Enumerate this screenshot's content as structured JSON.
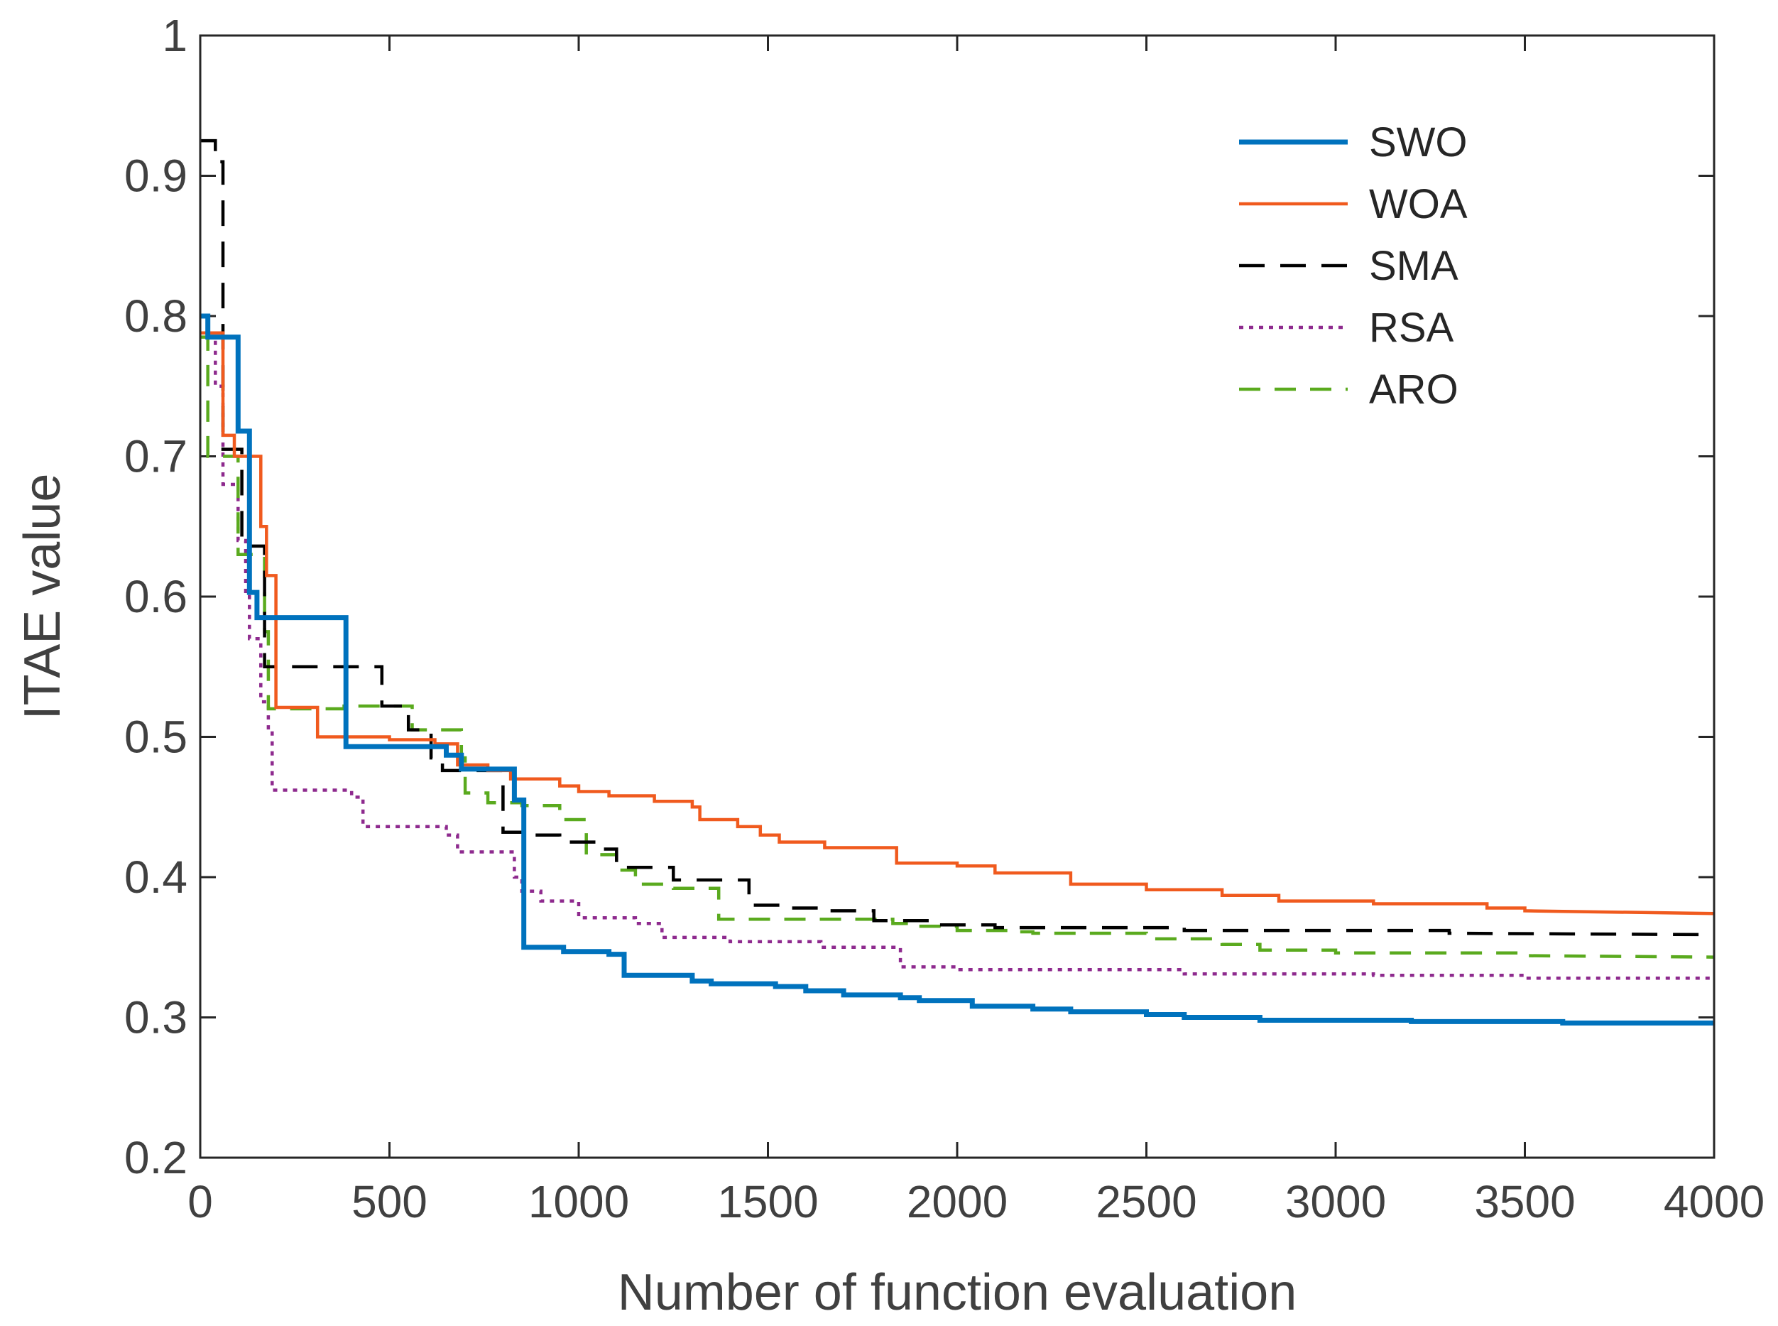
{
  "chart_data": {
    "type": "line",
    "title": "",
    "xlabel": "Number of function evaluation",
    "ylabel": "ITAE value",
    "xlim": [
      0,
      4000
    ],
    "ylim": [
      0.2,
      1
    ],
    "xticks": [
      0,
      500,
      1000,
      1500,
      2000,
      2500,
      3000,
      3500,
      4000
    ],
    "xtick_labels": [
      "0",
      "500",
      "1000",
      "1500",
      "2000",
      "2500",
      "3000",
      "3500",
      "4000"
    ],
    "yticks": [
      0.2,
      0.3,
      0.4,
      0.5,
      0.6,
      0.7,
      0.8,
      0.9,
      1
    ],
    "ytick_labels": [
      "0.2",
      "0.3",
      "0.4",
      "0.5",
      "0.6",
      "0.7",
      "0.8",
      "0.9",
      "1"
    ],
    "grid": false,
    "legend_position": "top-right",
    "series": [
      {
        "name": "SWO",
        "color": "#0072BD",
        "line_style": "solid",
        "points": [
          [
            0,
            0.8
          ],
          [
            20,
            0.8
          ],
          [
            20,
            0.785
          ],
          [
            100,
            0.785
          ],
          [
            100,
            0.718
          ],
          [
            130,
            0.718
          ],
          [
            130,
            0.603
          ],
          [
            150,
            0.603
          ],
          [
            150,
            0.585
          ],
          [
            385,
            0.585
          ],
          [
            385,
            0.493
          ],
          [
            650,
            0.493
          ],
          [
            650,
            0.487
          ],
          [
            690,
            0.487
          ],
          [
            690,
            0.477
          ],
          [
            830,
            0.477
          ],
          [
            830,
            0.455
          ],
          [
            855,
            0.455
          ],
          [
            855,
            0.35
          ],
          [
            960,
            0.35
          ],
          [
            960,
            0.347
          ],
          [
            1080,
            0.347
          ],
          [
            1080,
            0.345
          ],
          [
            1120,
            0.345
          ],
          [
            1120,
            0.33
          ],
          [
            1300,
            0.33
          ],
          [
            1300,
            0.326
          ],
          [
            1350,
            0.326
          ],
          [
            1350,
            0.324
          ],
          [
            1520,
            0.324
          ],
          [
            1520,
            0.322
          ],
          [
            1600,
            0.322
          ],
          [
            1600,
            0.319
          ],
          [
            1700,
            0.319
          ],
          [
            1700,
            0.316
          ],
          [
            1850,
            0.316
          ],
          [
            1850,
            0.314
          ],
          [
            1900,
            0.314
          ],
          [
            1900,
            0.312
          ],
          [
            2040,
            0.312
          ],
          [
            2040,
            0.308
          ],
          [
            2200,
            0.308
          ],
          [
            2200,
            0.306
          ],
          [
            2300,
            0.306
          ],
          [
            2300,
            0.304
          ],
          [
            2500,
            0.304
          ],
          [
            2500,
            0.302
          ],
          [
            2600,
            0.302
          ],
          [
            2600,
            0.3
          ],
          [
            2800,
            0.3
          ],
          [
            2800,
            0.298
          ],
          [
            3200,
            0.298
          ],
          [
            3200,
            0.297
          ],
          [
            3600,
            0.297
          ],
          [
            3600,
            0.296
          ],
          [
            4000,
            0.296
          ]
        ]
      },
      {
        "name": "WOA",
        "color": "#F05A1E",
        "line_style": "solid",
        "points": [
          [
            0,
            0.788
          ],
          [
            60,
            0.788
          ],
          [
            60,
            0.715
          ],
          [
            90,
            0.715
          ],
          [
            90,
            0.7
          ],
          [
            160,
            0.7
          ],
          [
            160,
            0.65
          ],
          [
            175,
            0.65
          ],
          [
            175,
            0.615
          ],
          [
            200,
            0.615
          ],
          [
            200,
            0.521
          ],
          [
            310,
            0.521
          ],
          [
            310,
            0.5
          ],
          [
            500,
            0.5
          ],
          [
            500,
            0.498
          ],
          [
            620,
            0.498
          ],
          [
            620,
            0.495
          ],
          [
            680,
            0.495
          ],
          [
            680,
            0.48
          ],
          [
            760,
            0.48
          ],
          [
            760,
            0.476
          ],
          [
            820,
            0.476
          ],
          [
            820,
            0.47
          ],
          [
            950,
            0.47
          ],
          [
            950,
            0.465
          ],
          [
            1000,
            0.465
          ],
          [
            1000,
            0.461
          ],
          [
            1080,
            0.461
          ],
          [
            1080,
            0.458
          ],
          [
            1200,
            0.458
          ],
          [
            1200,
            0.454
          ],
          [
            1300,
            0.454
          ],
          [
            1300,
            0.45
          ],
          [
            1320,
            0.45
          ],
          [
            1320,
            0.441
          ],
          [
            1420,
            0.441
          ],
          [
            1420,
            0.436
          ],
          [
            1480,
            0.436
          ],
          [
            1480,
            0.43
          ],
          [
            1530,
            0.43
          ],
          [
            1530,
            0.425
          ],
          [
            1650,
            0.425
          ],
          [
            1650,
            0.421
          ],
          [
            1840,
            0.421
          ],
          [
            1840,
            0.41
          ],
          [
            2000,
            0.41
          ],
          [
            2000,
            0.408
          ],
          [
            2100,
            0.408
          ],
          [
            2100,
            0.403
          ],
          [
            2300,
            0.403
          ],
          [
            2300,
            0.395
          ],
          [
            2500,
            0.395
          ],
          [
            2500,
            0.391
          ],
          [
            2700,
            0.391
          ],
          [
            2700,
            0.387
          ],
          [
            2850,
            0.387
          ],
          [
            2850,
            0.383
          ],
          [
            3100,
            0.383
          ],
          [
            3100,
            0.381
          ],
          [
            3400,
            0.381
          ],
          [
            3400,
            0.378
          ],
          [
            3500,
            0.378
          ],
          [
            3500,
            0.376
          ],
          [
            4000,
            0.374
          ]
        ]
      },
      {
        "name": "SMA",
        "color": "#000000",
        "line_style": "dashed",
        "points": [
          [
            0,
            0.925
          ],
          [
            40,
            0.925
          ],
          [
            40,
            0.91
          ],
          [
            60,
            0.91
          ],
          [
            60,
            0.705
          ],
          [
            110,
            0.705
          ],
          [
            110,
            0.636
          ],
          [
            170,
            0.636
          ],
          [
            170,
            0.55
          ],
          [
            480,
            0.55
          ],
          [
            480,
            0.522
          ],
          [
            550,
            0.522
          ],
          [
            550,
            0.505
          ],
          [
            610,
            0.505
          ],
          [
            610,
            0.485
          ],
          [
            640,
            0.485
          ],
          [
            640,
            0.476
          ],
          [
            800,
            0.476
          ],
          [
            800,
            0.432
          ],
          [
            880,
            0.432
          ],
          [
            880,
            0.43
          ],
          [
            950,
            0.43
          ],
          [
            950,
            0.425
          ],
          [
            1050,
            0.425
          ],
          [
            1050,
            0.42
          ],
          [
            1100,
            0.42
          ],
          [
            1100,
            0.407
          ],
          [
            1250,
            0.407
          ],
          [
            1250,
            0.398
          ],
          [
            1450,
            0.398
          ],
          [
            1450,
            0.38
          ],
          [
            1550,
            0.38
          ],
          [
            1550,
            0.378
          ],
          [
            1650,
            0.378
          ],
          [
            1650,
            0.376
          ],
          [
            1780,
            0.376
          ],
          [
            1780,
            0.369
          ],
          [
            1950,
            0.369
          ],
          [
            1950,
            0.366
          ],
          [
            2100,
            0.366
          ],
          [
            2100,
            0.364
          ],
          [
            2600,
            0.364
          ],
          [
            2600,
            0.362
          ],
          [
            3300,
            0.362
          ],
          [
            3300,
            0.36
          ],
          [
            4000,
            0.359
          ]
        ]
      },
      {
        "name": "RSA",
        "color": "#8E2A8E",
        "line_style": "dotted",
        "points": [
          [
            0,
            0.8
          ],
          [
            20,
            0.8
          ],
          [
            20,
            0.785
          ],
          [
            40,
            0.785
          ],
          [
            40,
            0.75
          ],
          [
            60,
            0.75
          ],
          [
            60,
            0.68
          ],
          [
            100,
            0.68
          ],
          [
            100,
            0.64
          ],
          [
            120,
            0.64
          ],
          [
            120,
            0.6
          ],
          [
            130,
            0.6
          ],
          [
            130,
            0.57
          ],
          [
            160,
            0.57
          ],
          [
            160,
            0.525
          ],
          [
            180,
            0.525
          ],
          [
            180,
            0.505
          ],
          [
            190,
            0.505
          ],
          [
            190,
            0.462
          ],
          [
            400,
            0.462
          ],
          [
            400,
            0.457
          ],
          [
            430,
            0.457
          ],
          [
            430,
            0.436
          ],
          [
            650,
            0.436
          ],
          [
            650,
            0.43
          ],
          [
            680,
            0.43
          ],
          [
            680,
            0.418
          ],
          [
            830,
            0.418
          ],
          [
            830,
            0.4
          ],
          [
            850,
            0.4
          ],
          [
            850,
            0.39
          ],
          [
            900,
            0.39
          ],
          [
            900,
            0.383
          ],
          [
            1000,
            0.383
          ],
          [
            1000,
            0.371
          ],
          [
            1150,
            0.371
          ],
          [
            1150,
            0.367
          ],
          [
            1220,
            0.367
          ],
          [
            1220,
            0.357
          ],
          [
            1400,
            0.357
          ],
          [
            1400,
            0.354
          ],
          [
            1640,
            0.354
          ],
          [
            1640,
            0.35
          ],
          [
            1850,
            0.35
          ],
          [
            1850,
            0.336
          ],
          [
            2000,
            0.336
          ],
          [
            2000,
            0.334
          ],
          [
            2600,
            0.334
          ],
          [
            2600,
            0.331
          ],
          [
            3100,
            0.331
          ],
          [
            3100,
            0.33
          ],
          [
            3500,
            0.33
          ],
          [
            3500,
            0.328
          ],
          [
            4000,
            0.328
          ]
        ]
      },
      {
        "name": "ARO",
        "color": "#5AAA1E",
        "line_style": "dashed",
        "points": [
          [
            0,
            0.785
          ],
          [
            20,
            0.785
          ],
          [
            20,
            0.7
          ],
          [
            100,
            0.7
          ],
          [
            100,
            0.63
          ],
          [
            170,
            0.63
          ],
          [
            170,
            0.575
          ],
          [
            180,
            0.575
          ],
          [
            180,
            0.52
          ],
          [
            380,
            0.52
          ],
          [
            380,
            0.522
          ],
          [
            560,
            0.522
          ],
          [
            560,
            0.505
          ],
          [
            690,
            0.505
          ],
          [
            690,
            0.485
          ],
          [
            700,
            0.485
          ],
          [
            700,
            0.46
          ],
          [
            760,
            0.46
          ],
          [
            760,
            0.453
          ],
          [
            850,
            0.453
          ],
          [
            850,
            0.451
          ],
          [
            950,
            0.451
          ],
          [
            950,
            0.441
          ],
          [
            1020,
            0.441
          ],
          [
            1020,
            0.416
          ],
          [
            1100,
            0.416
          ],
          [
            1100,
            0.405
          ],
          [
            1150,
            0.405
          ],
          [
            1150,
            0.395
          ],
          [
            1250,
            0.395
          ],
          [
            1250,
            0.392
          ],
          [
            1370,
            0.392
          ],
          [
            1370,
            0.37
          ],
          [
            1830,
            0.37
          ],
          [
            1830,
            0.367
          ],
          [
            1900,
            0.367
          ],
          [
            1900,
            0.365
          ],
          [
            2000,
            0.365
          ],
          [
            2000,
            0.362
          ],
          [
            2150,
            0.362
          ],
          [
            2150,
            0.361
          ],
          [
            2200,
            0.361
          ],
          [
            2200,
            0.36
          ],
          [
            2500,
            0.36
          ],
          [
            2500,
            0.356
          ],
          [
            2700,
            0.356
          ],
          [
            2700,
            0.352
          ],
          [
            2800,
            0.352
          ],
          [
            2800,
            0.348
          ],
          [
            3000,
            0.348
          ],
          [
            3000,
            0.346
          ],
          [
            3500,
            0.346
          ],
          [
            3500,
            0.344
          ],
          [
            4000,
            0.343
          ]
        ]
      }
    ]
  }
}
